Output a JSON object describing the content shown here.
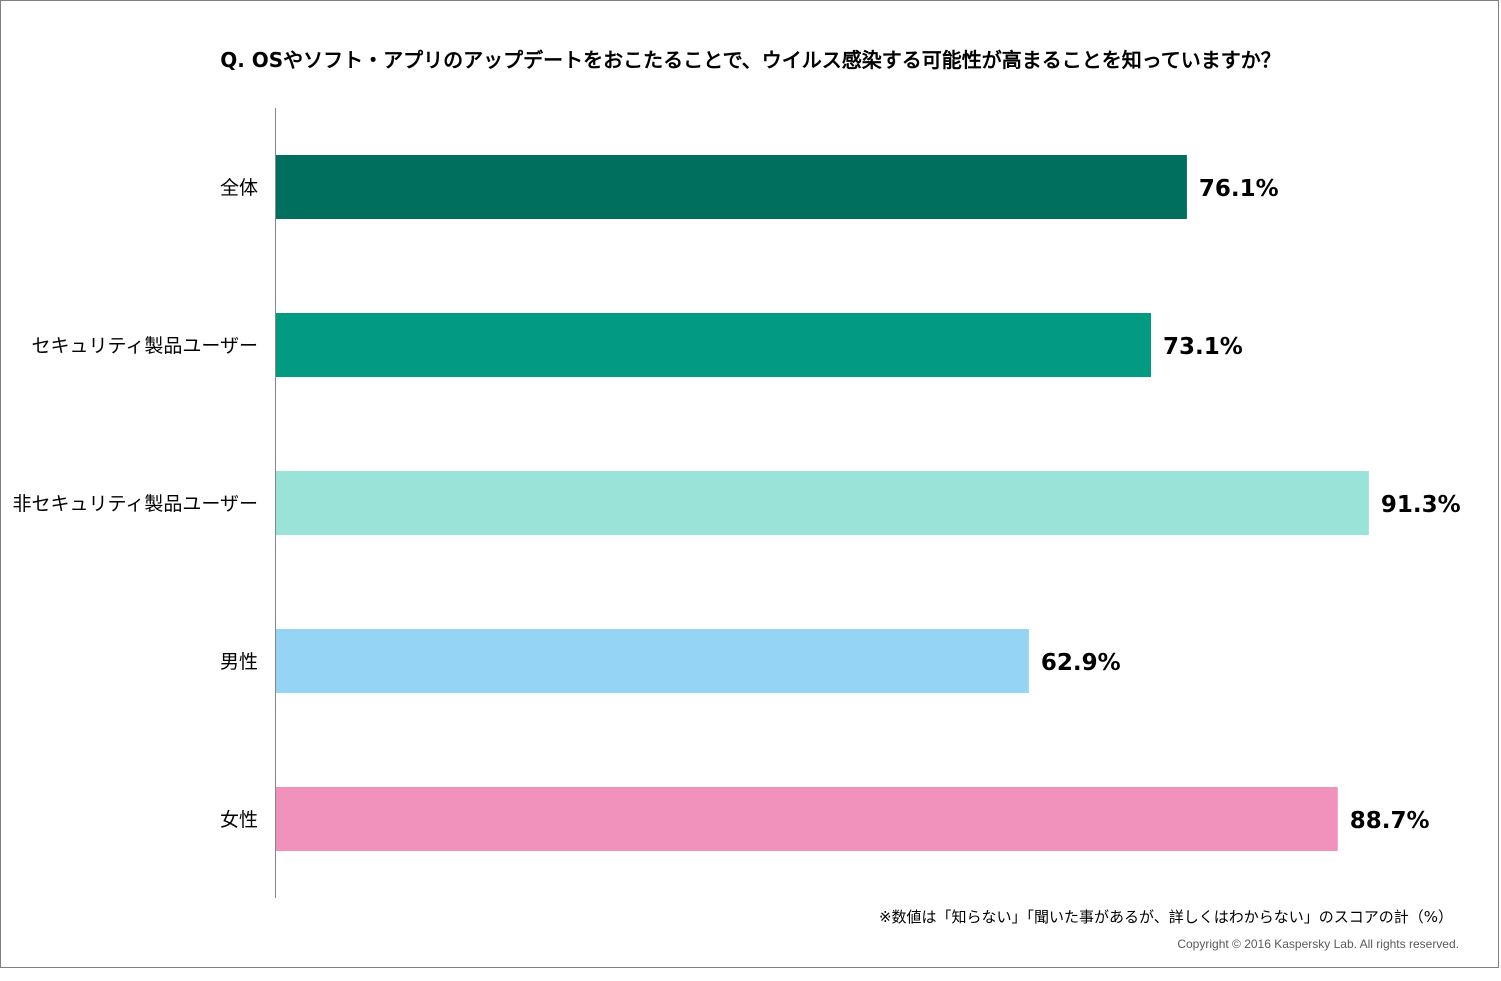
{
  "chart_data": {
    "type": "bar",
    "orientation": "horizontal",
    "title": "Q. OSやソフト・アプリのアップデートをおこたることで、ウイルス感染する可能性が高まることを知っていますか？",
    "categories": [
      "全体",
      "セキュリティ製品ユーザー",
      "非セキュリティ製品ユーザー",
      "男性",
      "女性"
    ],
    "values": [
      76.1,
      73.1,
      91.3,
      62.9,
      88.7
    ],
    "value_labels": [
      "76.1%",
      "73.1%",
      "91.3%",
      "62.9%",
      "88.7%"
    ],
    "colors": [
      "#006f5e",
      "#029a80",
      "#99e3d9",
      "#95d4f4",
      "#f192bc"
    ],
    "xlim": [
      0,
      100
    ],
    "xlabel": "",
    "ylabel": "",
    "grid": false,
    "legend": "none"
  },
  "footnote": "※数値は「知らない」「聞いた事があるが、詳しくはわからない」のスコアの計（%）",
  "copyright": "Copyright © 2016 Kaspersky Lab. All rights reserved."
}
